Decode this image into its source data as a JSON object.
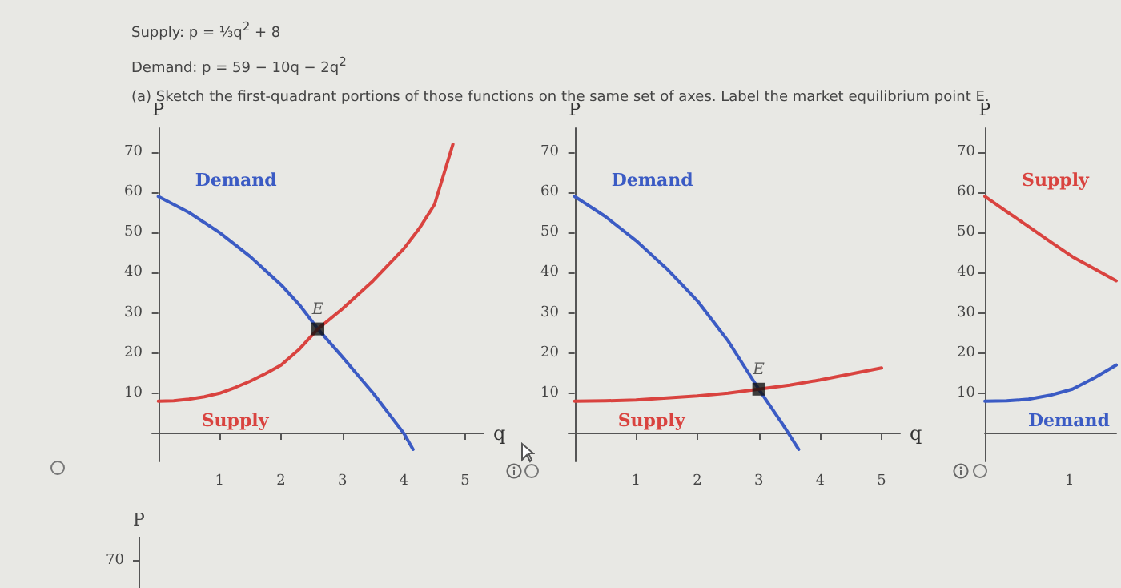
{
  "chart_data": [
    {
      "type": "other",
      "annotations": [
        "Supply: p = ⅓q$^{2}$ + 8",
        "Demand: p = 59 − 10q − 2q$^{2}$",
        "(a) Sketch the first-quadrant portions of those functions on the same set of axes. Label the market equilibrium point E."
      ]
    },
    {
      "type": "line",
      "xlabel": "q",
      "ylabel": "P",
      "xlim": [
        -0.1,
        5.3
      ],
      "ylim": [
        -7,
        76
      ],
      "xticks": [
        1,
        2,
        3,
        4,
        5
      ],
      "yticks": [
        10,
        20,
        30,
        40,
        50,
        60,
        70
      ],
      "grid": false,
      "series": [
        {
          "name": "Demand",
          "color": "#3b5bc4",
          "x": [
            0,
            0.25,
            0.5,
            0.75,
            1,
            1.25,
            1.5,
            1.75,
            2,
            2.3,
            2.6,
            2.8,
            3,
            3.25,
            3.5,
            3.75,
            4,
            4.15
          ],
          "values": [
            59,
            57,
            55,
            52.5,
            50,
            47,
            44,
            40.5,
            37,
            32,
            26,
            22.5,
            19,
            14.5,
            10,
            5,
            0,
            -4
          ]
        },
        {
          "name": "Supply",
          "color": "#d9433f",
          "x": [
            0,
            0.25,
            0.5,
            0.75,
            1,
            1.25,
            1.5,
            1.75,
            2,
            2.3,
            2.6,
            2.8,
            3,
            3.25,
            3.5,
            3.75,
            4,
            4.25,
            4.5,
            4.8
          ],
          "values": [
            8,
            8.1,
            8.5,
            9.1,
            10,
            11.4,
            13,
            14.9,
            17,
            21,
            26,
            28.5,
            31,
            34.5,
            38,
            42,
            46,
            51,
            57,
            72
          ]
        },
        {
          "type": "scatter",
          "marker": "square",
          "color": "#111111",
          "x": [
            2.6
          ],
          "values": [
            26
          ]
        }
      ],
      "annotations": [
        {
          "text": "E",
          "x": 2.6,
          "y": 26
        }
      ]
    },
    {
      "type": "line",
      "xlabel": "q",
      "ylabel": "P",
      "xlim": [
        -0.1,
        5.3
      ],
      "ylim": [
        -7,
        76
      ],
      "xticks": [
        1,
        2,
        3,
        4,
        5
      ],
      "yticks": [
        10,
        20,
        30,
        40,
        50,
        60,
        70
      ],
      "grid": false,
      "series": [
        {
          "name": "Demand",
          "color": "#3b5bc4",
          "x": [
            0,
            0.25,
            0.5,
            0.75,
            1,
            1.25,
            1.5,
            1.75,
            2,
            2.25,
            2.5,
            2.75,
            3,
            3.2,
            3.4,
            3.65
          ],
          "values": [
            59,
            56.5,
            54,
            51,
            48,
            44.5,
            41,
            37,
            33,
            28,
            23,
            17,
            11,
            6.5,
            2,
            -4
          ]
        },
        {
          "name": "Supply",
          "color": "#d9433f",
          "x": [
            0,
            0.5,
            1,
            1.5,
            2,
            2.5,
            3,
            3.5,
            4,
            4.5,
            5
          ],
          "values": [
            8,
            8.1,
            8.3,
            8.8,
            9.3,
            10,
            11,
            12,
            13.3,
            14.8,
            16.3
          ]
        },
        {
          "type": "scatter",
          "marker": "square",
          "color": "#111111",
          "x": [
            3
          ],
          "values": [
            11
          ]
        }
      ],
      "annotations": [
        {
          "text": "E",
          "x": 3,
          "y": 11
        }
      ]
    },
    {
      "type": "line",
      "ylabel": "P",
      "categories": [
        null,
        null,
        null,
        null,
        null,
        null,
        null
      ],
      "ylim": [
        -7,
        76
      ],
      "yticks": [
        10,
        20,
        30,
        40,
        50,
        60,
        70
      ],
      "grid": false,
      "series": [
        {
          "name": "Supply",
          "color": "#d9433f",
          "values": [
            59,
            55.2,
            51.5,
            47.7,
            44,
            41,
            38
          ]
        },
        {
          "name": "Demand",
          "color": "#3b5bc4",
          "values": [
            8,
            8.1,
            8.5,
            9.5,
            11,
            13.8,
            17
          ]
        }
      ],
      "annotations": [
        "1"
      ]
    },
    {
      "type": "other",
      "annotations": [
        "P",
        "70"
      ]
    }
  ]
}
